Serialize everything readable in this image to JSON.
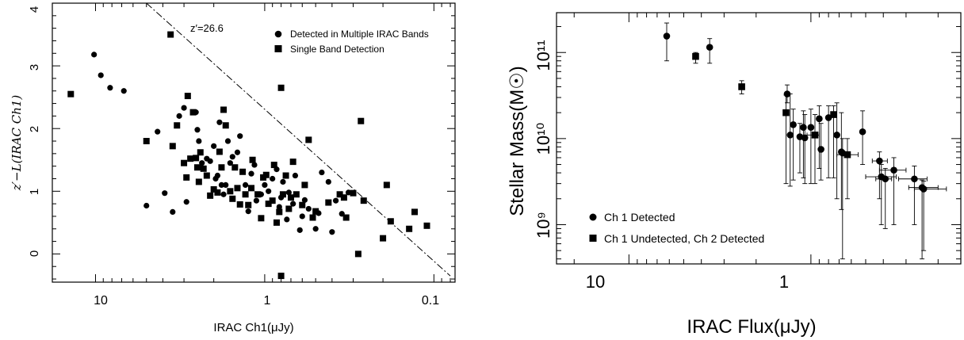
{
  "chart_data": [
    {
      "type": "scatter",
      "xlabel": "IRAC Ch1(μJy)",
      "ylabel": "z′−L(IRAC Ch1)",
      "x_scale": "log",
      "x_reversed": true,
      "xlim": [
        18,
        0.075
      ],
      "ylim": [
        -0.45,
        4.0
      ],
      "x_ticks": [
        10,
        1,
        0.1
      ],
      "x_tick_labels": [
        "10",
        "1",
        "0.1"
      ],
      "y_ticks": [
        0,
        1,
        2,
        3,
        4
      ],
      "y_tick_labels": [
        "0",
        "1",
        "2",
        "3",
        "4"
      ],
      "legend_position": "top-right",
      "annotation": {
        "text": "z′=26.6",
        "line_points": [
          [
            5.0,
            4.0
          ],
          [
            0.08,
            -0.35
          ]
        ]
      },
      "series": [
        {
          "name": "Detected in Multiple IRAC Bands",
          "marker": "circle",
          "points": [
            [
              10.2,
              3.18
            ],
            [
              9.3,
              2.85
            ],
            [
              8.2,
              2.65
            ],
            [
              6.8,
              2.6
            ],
            [
              5.0,
              0.77
            ],
            [
              4.3,
              1.95
            ],
            [
              3.9,
              0.97
            ],
            [
              3.5,
              0.67
            ],
            [
              3.2,
              2.2
            ],
            [
              3.0,
              2.33
            ],
            [
              2.9,
              0.83
            ],
            [
              2.7,
              1.52
            ],
            [
              2.55,
              2.26
            ],
            [
              2.5,
              1.98
            ],
            [
              2.45,
              1.8
            ],
            [
              2.35,
              1.45
            ],
            [
              2.2,
              1.52
            ],
            [
              2.1,
              1.48
            ],
            [
              2.0,
              1.72
            ],
            [
              1.95,
              1.2
            ],
            [
              1.9,
              1.25
            ],
            [
              1.85,
              2.1
            ],
            [
              1.8,
              1.1
            ],
            [
              1.75,
              0.95
            ],
            [
              1.7,
              1.1
            ],
            [
              1.65,
              1.8
            ],
            [
              1.6,
              1.45
            ],
            [
              1.55,
              1.55
            ],
            [
              1.5,
              1.38
            ],
            [
              1.45,
              1.62
            ],
            [
              1.4,
              1.88
            ],
            [
              1.3,
              1.1
            ],
            [
              1.25,
              0.68
            ],
            [
              1.2,
              1.28
            ],
            [
              1.15,
              1.42
            ],
            [
              1.12,
              0.85
            ],
            [
              1.05,
              0.95
            ],
            [
              1.0,
              1.1
            ],
            [
              0.95,
              1.0
            ],
            [
              0.9,
              1.2
            ],
            [
              0.85,
              1.35
            ],
            [
              0.82,
              0.75
            ],
            [
              0.8,
              0.9
            ],
            [
              0.78,
              1.15
            ],
            [
              0.74,
              0.55
            ],
            [
              0.72,
              0.98
            ],
            [
              0.68,
              0.8
            ],
            [
              0.66,
              1.25
            ],
            [
              0.62,
              0.38
            ],
            [
              0.6,
              0.6
            ],
            [
              0.58,
              0.86
            ],
            [
              0.55,
              0.72
            ],
            [
              0.5,
              0.4
            ],
            [
              0.48,
              0.65
            ],
            [
              0.46,
              1.3
            ],
            [
              0.42,
              1.15
            ],
            [
              0.4,
              0.35
            ],
            [
              0.38,
              0.85
            ],
            [
              0.35,
              0.64
            ],
            [
              0.32,
              0.98
            ]
          ]
        },
        {
          "name": "Single Band Detection",
          "marker": "square",
          "points": [
            [
              14.0,
              2.55
            ],
            [
              5.0,
              1.8
            ],
            [
              3.6,
              3.5
            ],
            [
              3.5,
              1.72
            ],
            [
              3.3,
              2.05
            ],
            [
              3.0,
              1.45
            ],
            [
              2.9,
              1.22
            ],
            [
              2.85,
              2.52
            ],
            [
              2.75,
              1.52
            ],
            [
              2.65,
              2.26
            ],
            [
              2.55,
              1.53
            ],
            [
              2.5,
              1.38
            ],
            [
              2.45,
              1.15
            ],
            [
              2.4,
              1.62
            ],
            [
              2.3,
              1.36
            ],
            [
              2.2,
              1.25
            ],
            [
              2.1,
              0.93
            ],
            [
              2.0,
              1.03
            ],
            [
              1.9,
              0.98
            ],
            [
              1.85,
              1.63
            ],
            [
              1.8,
              1.38
            ],
            [
              1.75,
              2.3
            ],
            [
              1.7,
              2.05
            ],
            [
              1.6,
              1.0
            ],
            [
              1.55,
              0.88
            ],
            [
              1.5,
              1.38
            ],
            [
              1.45,
              1.05
            ],
            [
              1.4,
              0.79
            ],
            [
              1.35,
              1.31
            ],
            [
              1.3,
              0.95
            ],
            [
              1.25,
              0.78
            ],
            [
              1.2,
              1.05
            ],
            [
              1.18,
              1.5
            ],
            [
              1.1,
              0.95
            ],
            [
              1.05,
              0.57
            ],
            [
              1.02,
              1.22
            ],
            [
              0.98,
              1.26
            ],
            [
              0.95,
              0.8
            ],
            [
              0.9,
              0.85
            ],
            [
              0.88,
              1.42
            ],
            [
              0.85,
              0.5
            ],
            [
              0.82,
              0.67
            ],
            [
              0.8,
              2.65
            ],
            [
              0.78,
              0.95
            ],
            [
              0.75,
              1.25
            ],
            [
              0.72,
              0.72
            ],
            [
              0.7,
              0.9
            ],
            [
              0.68,
              1.47
            ],
            [
              0.65,
              0.95
            ],
            [
              0.6,
              0.78
            ],
            [
              0.58,
              1.1
            ],
            [
              0.55,
              1.82
            ],
            [
              0.52,
              0.58
            ],
            [
              0.5,
              0.68
            ],
            [
              0.42,
              0.82
            ],
            [
              0.36,
              0.95
            ],
            [
              0.34,
              0.9
            ],
            [
              0.33,
              0.58
            ],
            [
              0.3,
              0.97
            ],
            [
              0.28,
              0.0
            ],
            [
              0.27,
              2.12
            ],
            [
              0.26,
              0.85
            ],
            [
              0.2,
              0.25
            ],
            [
              0.19,
              1.1
            ],
            [
              0.18,
              0.52
            ],
            [
              0.14,
              0.4
            ],
            [
              0.13,
              0.67
            ],
            [
              0.11,
              0.45
            ],
            [
              0.8,
              -0.35
            ]
          ]
        }
      ]
    },
    {
      "type": "scatter",
      "xlabel": "IRAC Flux(μJy)",
      "ylabel": "Stellar Mass(M☉)",
      "x_scale": "log",
      "y_scale": "log",
      "x_reversed": true,
      "xlim": [
        25,
        0.15
      ],
      "ylim": [
        350000000.0,
        290000000000.0
      ],
      "x_ticks": [
        10,
        1
      ],
      "x_tick_labels": [
        "10",
        "1"
      ],
      "y_ticks": [
        1000000000.0,
        10000000000.0,
        100000000000.0
      ],
      "y_tick_labels": [
        "10⁹",
        "10¹⁰",
        "10¹¹"
      ],
      "legend_position": "bottom-left",
      "series": [
        {
          "name": "Ch 1 Detected",
          "marker": "circle",
          "points": [
            {
              "x": 6.2,
              "y": 155000000000.0,
              "ylo": 80000000000.0,
              "yhi": 220000000000.0
            },
            {
              "x": 3.6,
              "y": 115000000000.0,
              "ylo": 75000000000.0,
              "yhi": 145000000000.0
            },
            {
              "x": 1.35,
              "y": 33000000000.0,
              "ylo": 26000000000.0,
              "yhi": 42000000000.0
            },
            {
              "x": 1.3,
              "y": 11000000000.0,
              "ylo": 2800000000.0,
              "yhi": 33000000000.0
            },
            {
              "x": 1.25,
              "y": 14500000000.0,
              "ylo": 3300000000.0,
              "yhi": 22000000000.0
            },
            {
              "x": 1.15,
              "y": 10500000000.0,
              "ylo": 4000000000.0,
              "yhi": 15000000000.0
            },
            {
              "x": 1.1,
              "y": 13500000000.0,
              "ylo": 3500000000.0,
              "yhi": 21000000000.0
            },
            {
              "x": 1.08,
              "y": 10200000000.0,
              "ylo": 3000000000.0,
              "yhi": 19000000000.0
            },
            {
              "x": 1.0,
              "y": 13500000000.0,
              "ylo": 3000000000.0,
              "yhi": 22000000000.0
            },
            {
              "x": 0.9,
              "y": 17000000000.0,
              "ylo": 4500000000.0,
              "yhi": 24000000000.0
            },
            {
              "x": 0.88,
              "y": 7500000000.0,
              "ylo": 3300000000.0,
              "yhi": 15000000000.0
            },
            {
              "x": 0.8,
              "y": 17500000000.0,
              "ylo": 3500000000.0,
              "yhi": 24000000000.0
            },
            {
              "x": 0.72,
              "y": 11000000000.0,
              "ylo": 2000000000.0,
              "yhi": 26000000000.0
            },
            {
              "x": 0.68,
              "y": 7000000000.0,
              "ylo": 1500000000.0,
              "yhi": 20000000000.0
            },
            {
              "x": 0.67,
              "y": 6800000000.0,
              "ylo": 400000000.0,
              "yhi": 10000000000.0
            },
            {
              "x": 0.52,
              "y": 12000000000.0,
              "ylo": 5000000000.0,
              "yhi": 21000000000.0
            },
            {
              "x": 0.42,
              "y": 5500000000.0,
              "ylo": 2000000000.0,
              "yhi": 7000000000.0,
              "xlo": 0.38,
              "xhi": 0.46
            },
            {
              "x": 0.41,
              "y": 3600000000.0,
              "ylo": 1000000000.0,
              "yhi": 5000000000.0,
              "xlo": 0.34,
              "xhi": 0.5
            },
            {
              "x": 0.39,
              "y": 3400000000.0,
              "ylo": 900000000.0,
              "yhi": 4500000000.0,
              "xlo": 0.36,
              "xhi": 0.44
            },
            {
              "x": 0.35,
              "y": 4300000000.0,
              "ylo": 1000000000.0,
              "yhi": 6000000000.0,
              "xlo": 0.3,
              "xhi": 0.42
            },
            {
              "x": 0.27,
              "y": 3400000000.0,
              "ylo": 1000000000.0,
              "yhi": 4800000000.0,
              "xlo": 0.23,
              "xhi": 0.33
            },
            {
              "x": 0.245,
              "y": 2700000000.0,
              "ylo": 400000000.0,
              "yhi": 3300000000.0,
              "xlo": 0.2,
              "xhi": 0.29
            },
            {
              "x": 0.24,
              "y": 2600000000.0,
              "ylo": 500000000.0,
              "yhi": 3200000000.0,
              "xlo": 0.18,
              "xhi": 0.27
            }
          ]
        },
        {
          "name": "Ch 1 Undetected, Ch 2 Detected",
          "marker": "square",
          "points": [
            {
              "x": 4.3,
              "y": 90000000000.0,
              "ylo": 75000000000.0,
              "yhi": 100000000000.0
            },
            {
              "x": 2.4,
              "y": 40000000000.0,
              "ylo": 33000000000.0,
              "yhi": 47000000000.0
            },
            {
              "x": 1.37,
              "y": 20000000000.0,
              "ylo": 3000000000.0,
              "yhi": 32000000000.0
            },
            {
              "x": 0.95,
              "y": 11000000000.0,
              "ylo": 3000000000.0,
              "yhi": 19000000000.0,
              "xlo": 0.9,
              "xhi": 1.05
            },
            {
              "x": 0.75,
              "y": 19000000000.0,
              "ylo": 3500000000.0,
              "yhi": 24000000000.0
            },
            {
              "x": 0.63,
              "y": 6500000000.0,
              "ylo": 2000000000.0,
              "yhi": 10000000000.0,
              "xlo": 0.55,
              "xhi": 0.72
            }
          ]
        }
      ]
    }
  ]
}
